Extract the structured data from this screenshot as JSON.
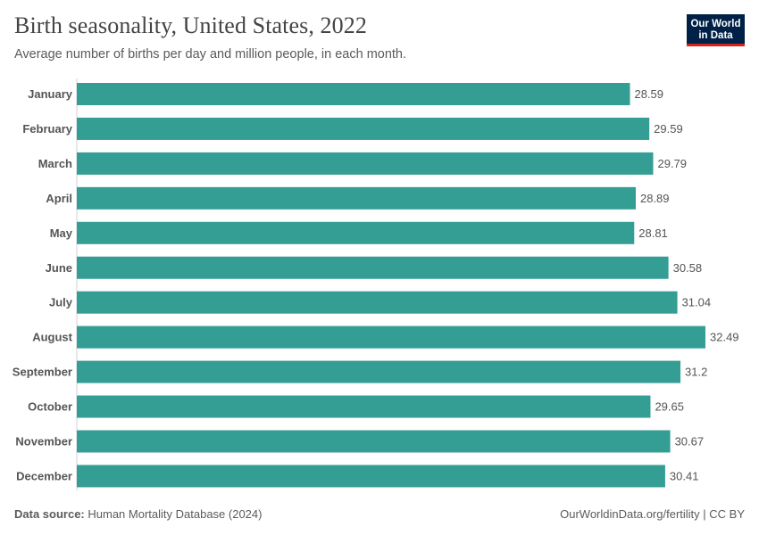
{
  "header": {
    "title": "Birth seasonality, United States, 2022",
    "subtitle": "Average number of births per day and million people, in each month.",
    "logo_line1": "Our World",
    "logo_line2": "in Data"
  },
  "footer": {
    "source_label": "Data source:",
    "source_text": "Human Mortality Database (2024)",
    "right_text": "OurWorldinData.org/fertility | CC BY"
  },
  "colors": {
    "bar": "#349e95",
    "logo_bg": "#002147",
    "logo_accent": "#ce261e"
  },
  "chart_data": {
    "type": "bar",
    "orientation": "horizontal",
    "title": "Birth seasonality, United States, 2022",
    "xlabel": "",
    "ylabel": "",
    "xlim": [
      0,
      32.49
    ],
    "categories": [
      "January",
      "February",
      "March",
      "April",
      "May",
      "June",
      "July",
      "August",
      "September",
      "October",
      "November",
      "December"
    ],
    "values": [
      28.59,
      29.59,
      29.79,
      28.89,
      28.81,
      30.58,
      31.04,
      32.49,
      31.2,
      29.65,
      30.67,
      30.41
    ],
    "value_labels": [
      "28.59",
      "29.59",
      "29.79",
      "28.89",
      "28.81",
      "30.58",
      "31.04",
      "32.49",
      "31.2",
      "29.65",
      "30.67",
      "30.41"
    ],
    "grid": false,
    "legend": "none"
  }
}
